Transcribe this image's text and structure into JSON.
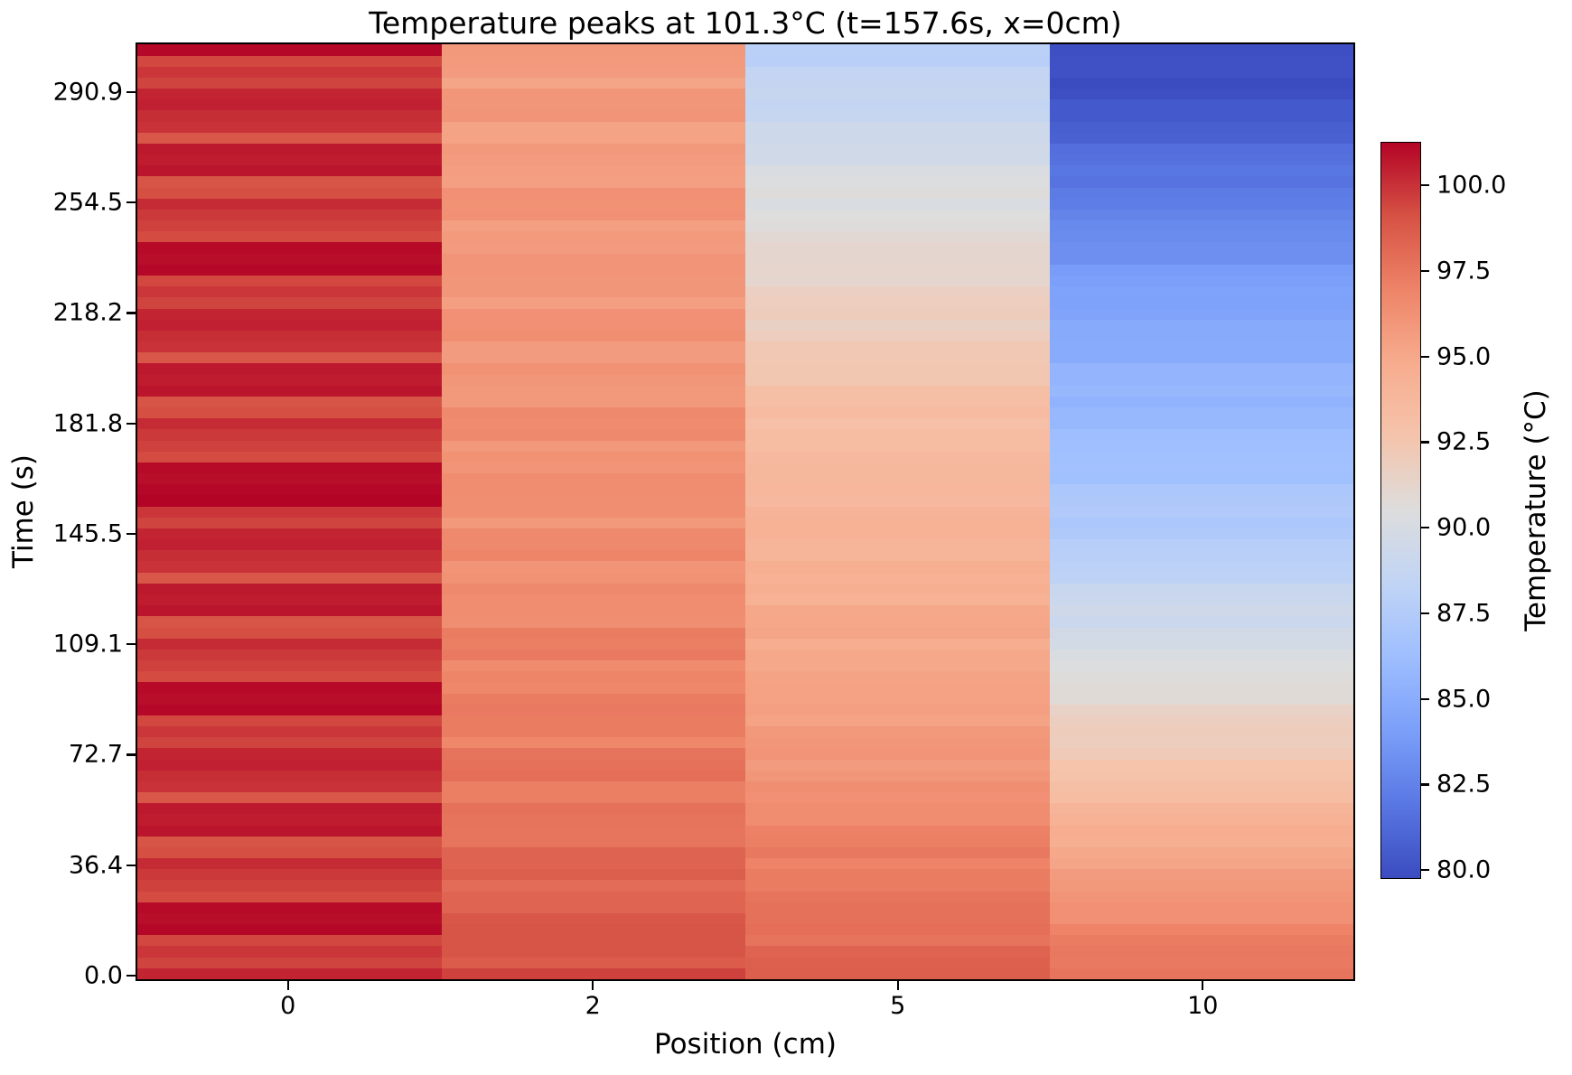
{
  "title": "Temperature peaks at 101.3°C (t=157.6s, x=0cm)",
  "chart_data": {
    "type": "heatmap",
    "title": "Temperature peaks at 101.3°C (t=157.6s, x=0cm)",
    "xlabel": "Position (cm)",
    "ylabel": "Time (s)",
    "x_tick_labels": [
      "0",
      "2",
      "5",
      "10"
    ],
    "y_tick_labels": [
      "0.0",
      "36.4",
      "72.7",
      "109.1",
      "145.5",
      "181.8",
      "218.2",
      "254.5",
      "290.9"
    ],
    "positions_cm": [
      0,
      2,
      5,
      10
    ],
    "time_start_s": 0.0,
    "time_step_s": 3.64,
    "peak": {
      "value_c": 101.3,
      "t_s": 157.6,
      "x_cm": 0
    },
    "colorbar": {
      "label": "Temperature (°C)",
      "tick_values": [
        100.0,
        97.5,
        95.0,
        92.5,
        90.0,
        87.5,
        85.0,
        82.5,
        80.0
      ],
      "vmin": 79.74,
      "vmax": 101.27,
      "colormap": "coolwarm",
      "colormap_anchors": [
        "#3B4CC0",
        "#5977E3",
        "#7B9FF9",
        "#9EBEFF",
        "#C0D4F5",
        "#DDDDDD",
        "#F5C4AC",
        "#F7AC8E",
        "#EE8468",
        "#D65244",
        "#B40426"
      ]
    },
    "grid": false,
    "values_note": "rows are time steps from t=0 (first row) upward; columns are positions 0,2,5,10 cm; units degC",
    "values": [
      [
        100.4,
        99.6,
        98.6,
        97.6
      ],
      [
        99.5,
        98.7,
        98.5,
        97.4
      ],
      [
        99.9,
        99.0,
        98.4,
        97.5
      ],
      [
        99.4,
        99.0,
        97.7,
        97.3
      ],
      [
        101.2,
        99.0,
        97.9,
        97.0
      ],
      [
        101.0,
        98.9,
        97.8,
        96.3
      ],
      [
        101.1,
        98.3,
        97.8,
        96.3
      ],
      [
        99.3,
        98.3,
        97.7,
        96.1
      ],
      [
        99.6,
        98.0,
        97.3,
        95.9
      ],
      [
        99.8,
        98.6,
        97.3,
        95.7
      ],
      [
        100.2,
        98.4,
        97.0,
        95.2
      ],
      [
        99.2,
        98.4,
        97.5,
        95.0
      ],
      [
        99.0,
        97.6,
        97.2,
        94.5
      ],
      [
        100.8,
        97.6,
        97.1,
        94.7
      ],
      [
        100.6,
        97.7,
        96.5,
        94.3
      ],
      [
        100.7,
        97.8,
        96.5,
        94.1
      ],
      [
        98.9,
        97.2,
        96.3,
        93.3
      ],
      [
        100.0,
        97.2,
        96.4,
        93.1
      ],
      [
        100.1,
        97.9,
        96.0,
        92.8
      ],
      [
        100.5,
        97.8,
        95.7,
        92.7
      ],
      [
        100.4,
        97.7,
        96.1,
        92.1
      ],
      [
        99.5,
        96.8,
        96.0,
        91.9
      ],
      [
        99.9,
        97.3,
        95.9,
        92.0
      ],
      [
        99.4,
        97.3,
        95.3,
        91.8
      ],
      [
        101.2,
        97.4,
        95.5,
        91.5
      ],
      [
        101.0,
        97.3,
        95.4,
        90.8
      ],
      [
        101.1,
        96.8,
        95.4,
        90.8
      ],
      [
        99.3,
        96.9,
        95.3,
        90.6
      ],
      [
        99.6,
        96.6,
        95.0,
        90.4
      ],
      [
        99.8,
        97.4,
        95.0,
        90.2
      ],
      [
        100.2,
        97.2,
        94.7,
        89.7
      ],
      [
        99.2,
        97.3,
        95.2,
        89.6
      ],
      [
        99.0,
        96.4,
        95.1,
        89.1
      ],
      [
        100.8,
        96.5,
        95.0,
        89.4
      ],
      [
        100.6,
        96.5,
        94.4,
        89.1
      ],
      [
        100.7,
        96.7,
        94.5,
        89.0
      ],
      [
        98.9,
        96.2,
        94.4,
        88.2
      ],
      [
        100.0,
        96.1,
        94.5,
        88.1
      ],
      [
        100.1,
        96.9,
        94.1,
        87.9
      ],
      [
        100.5,
        96.7,
        94.0,
        87.8
      ],
      [
        100.4,
        96.7,
        94.4,
        87.3
      ],
      [
        99.5,
        95.9,
        94.3,
        87.1
      ],
      [
        99.9,
        96.4,
        94.2,
        87.4
      ],
      [
        101.3,
        96.4,
        93.6,
        87.2
      ],
      [
        101.2,
        96.5,
        93.8,
        87.1
      ],
      [
        101.0,
        96.5,
        93.7,
        86.4
      ],
      [
        101.1,
        96.1,
        93.7,
        86.5
      ],
      [
        99.3,
        96.2,
        93.6,
        86.4
      ],
      [
        99.6,
        95.9,
        93.3,
        86.3
      ],
      [
        99.8,
        96.7,
        93.3,
        86.2
      ],
      [
        100.2,
        96.6,
        93.0,
        85.8
      ],
      [
        99.2,
        96.7,
        93.5,
        85.8
      ],
      [
        99.0,
        95.9,
        93.2,
        85.4
      ],
      [
        100.8,
        95.9,
        93.1,
        85.8
      ],
      [
        100.6,
        96.0,
        92.4,
        85.6
      ],
      [
        100.7,
        96.2,
        92.4,
        85.6
      ],
      [
        98.9,
        95.7,
        92.3,
        84.9
      ],
      [
        100.0,
        95.7,
        92.3,
        84.9
      ],
      [
        100.1,
        96.4,
        91.9,
        84.8
      ],
      [
        100.5,
        96.3,
        91.6,
        84.8
      ],
      [
        100.4,
        96.3,
        92.0,
        84.4
      ],
      [
        99.5,
        95.5,
        91.9,
        84.2
      ],
      [
        99.9,
        96.0,
        91.7,
        84.3
      ],
      [
        99.4,
        96.0,
        91.1,
        84.1
      ],
      [
        101.2,
        96.1,
        91.2,
        83.9
      ],
      [
        101.0,
        96.1,
        91.1,
        83.2
      ],
      [
        101.1,
        95.7,
        91.1,
        83.2
      ],
      [
        99.3,
        95.8,
        90.9,
        83.0
      ],
      [
        99.6,
        95.5,
        90.6,
        82.9
      ],
      [
        99.8,
        96.3,
        90.5,
        82.6
      ],
      [
        100.2,
        96.2,
        90.2,
        82.2
      ],
      [
        99.2,
        96.3,
        90.6,
        82.1
      ],
      [
        99.0,
        95.5,
        90.4,
        81.7
      ],
      [
        100.8,
        95.6,
        90.2,
        81.9
      ],
      [
        100.6,
        95.7,
        89.5,
        81.6
      ],
      [
        100.7,
        95.9,
        89.5,
        81.5
      ],
      [
        98.9,
        95.3,
        89.3,
        80.8
      ],
      [
        100.0,
        95.3,
        89.3,
        80.7
      ],
      [
        100.1,
        96.1,
        88.8,
        80.4
      ],
      [
        100.5,
        96.0,
        88.6,
        80.4
      ],
      [
        100.4,
        96.0,
        88.9,
        79.9
      ],
      [
        99.5,
        95.2,
        88.7,
        79.7
      ],
      [
        99.9,
        95.7,
        88.6,
        80.0
      ],
      [
        99.4,
        95.8,
        87.9,
        80.0
      ],
      [
        101.2,
        95.9,
        88.0,
        79.9
      ]
    ]
  }
}
